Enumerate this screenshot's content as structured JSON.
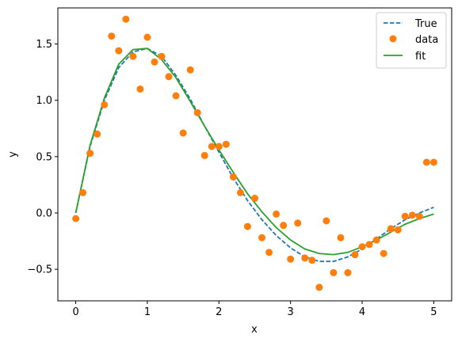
{
  "chart_data": {
    "type": "line",
    "title": "",
    "xlabel": "x",
    "ylabel": "y",
    "xlim": [
      -0.25,
      5.25
    ],
    "ylim": [
      -0.78,
      1.82
    ],
    "xticks": [
      0,
      1,
      2,
      3,
      4,
      5
    ],
    "xtick_labels": [
      "0",
      "1",
      "2",
      "3",
      "4",
      "5"
    ],
    "yticks": [
      -0.5,
      0.0,
      0.5,
      1.0,
      1.5
    ],
    "ytick_labels": [
      "−0.5",
      "0.0",
      "0.5",
      "1.0",
      "1.5"
    ],
    "grid": false,
    "legend_position": "top-right",
    "series": [
      {
        "name": "True",
        "kind": "line",
        "style": "dashed",
        "color": "#1f77b4",
        "x": [
          0.0,
          0.2,
          0.4,
          0.6,
          0.8,
          1.0,
          1.2,
          1.4,
          1.6,
          1.8,
          2.0,
          2.2,
          2.4,
          2.6,
          2.8,
          3.0,
          3.2,
          3.4,
          3.6,
          3.8,
          4.0,
          4.2,
          4.4,
          4.6,
          4.8,
          5.0
        ],
        "y": [
          0.0,
          0.59,
          1.0,
          1.29,
          1.43,
          1.46,
          1.39,
          1.22,
          1.01,
          0.77,
          0.54,
          0.31,
          0.11,
          -0.06,
          -0.2,
          -0.31,
          -0.39,
          -0.43,
          -0.43,
          -0.39,
          -0.32,
          -0.23,
          -0.14,
          -0.06,
          0.0,
          0.05
        ]
      },
      {
        "name": "data",
        "kind": "scatter",
        "color": "#ff7f0e",
        "x": [
          0.0,
          0.1,
          0.2,
          0.3,
          0.4,
          0.5,
          0.6,
          0.7,
          0.8,
          0.9,
          1.0,
          1.1,
          1.2,
          1.3,
          1.4,
          1.5,
          1.6,
          1.7,
          1.8,
          1.9,
          2.0,
          2.1,
          2.2,
          2.3,
          2.4,
          2.5,
          2.6,
          2.7,
          2.8,
          2.9,
          3.0,
          3.1,
          3.2,
          3.3,
          3.4,
          3.5,
          3.6,
          3.7,
          3.8,
          3.9,
          4.0,
          4.1,
          4.2,
          4.3,
          4.4,
          4.5,
          4.6,
          4.7,
          4.8,
          4.9,
          5.0
        ],
        "y": [
          -0.05,
          0.18,
          0.53,
          0.7,
          0.96,
          1.57,
          1.44,
          1.72,
          1.39,
          1.1,
          1.56,
          1.34,
          1.39,
          1.21,
          1.04,
          0.71,
          1.27,
          0.89,
          0.51,
          0.59,
          0.59,
          0.61,
          0.32,
          0.18,
          -0.12,
          0.13,
          -0.22,
          -0.35,
          -0.01,
          -0.11,
          -0.41,
          -0.09,
          -0.4,
          -0.42,
          -0.66,
          -0.07,
          -0.53,
          -0.22,
          -0.53,
          -0.37,
          -0.3,
          -0.28,
          -0.24,
          -0.36,
          -0.14,
          -0.15,
          -0.03,
          -0.02,
          -0.03,
          0.45,
          0.45
        ]
      },
      {
        "name": "fit",
        "kind": "line",
        "style": "solid",
        "color": "#2ca02c",
        "x": [
          0.0,
          0.2,
          0.4,
          0.6,
          0.8,
          1.0,
          1.2,
          1.4,
          1.6,
          1.8,
          2.0,
          2.2,
          2.4,
          2.6,
          2.8,
          3.0,
          3.2,
          3.4,
          3.6,
          3.8,
          4.0,
          4.2,
          4.4,
          4.6,
          4.8,
          5.0
        ],
        "y": [
          0.0,
          0.6,
          1.02,
          1.32,
          1.45,
          1.46,
          1.36,
          1.2,
          0.99,
          0.77,
          0.56,
          0.36,
          0.17,
          0.01,
          -0.13,
          -0.24,
          -0.32,
          -0.36,
          -0.37,
          -0.35,
          -0.3,
          -0.24,
          -0.17,
          -0.1,
          -0.05,
          -0.01
        ]
      }
    ]
  }
}
